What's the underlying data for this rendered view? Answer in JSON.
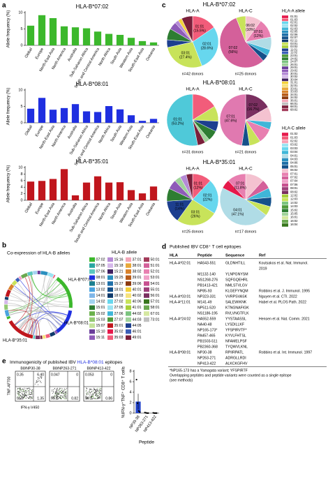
{
  "panel_labels": [
    "a",
    "b",
    "c",
    "d",
    "e"
  ],
  "chart_data": [
    {
      "type": "bar",
      "title": "HLA-B*07:02",
      "color": "#3cb82c",
      "ylabel": "Allele frequency (%)",
      "categories": [
        "Global",
        "Europe",
        "North-East Asia",
        "North America",
        "Australia",
        "Sub-Saharan Africa",
        "South and Central America",
        "North Africa",
        "South Asia",
        "Western Asia",
        "South-East Asia",
        "Oceania"
      ],
      "values": [
        6,
        9.2,
        8.3,
        5.8,
        5.5,
        5.2,
        4.2,
        3.5,
        3.2,
        2.3,
        1.3,
        0.9
      ],
      "ylim": [
        0,
        10
      ],
      "yticks": [
        0,
        5,
        10
      ]
    },
    {
      "type": "bar",
      "title": "HLA-B*08:01",
      "color": "#1f2fe0",
      "ylabel": "Allele frequency (%)",
      "categories": [
        "Global",
        "Europe",
        "North-East Asia",
        "North America",
        "Australia",
        "Sub-Saharan Africa",
        "South and Central America",
        "North Africa",
        "South Asia",
        "Western Asia",
        "South-East Asia",
        "Oceania"
      ],
      "values": [
        4.3,
        7.6,
        4.0,
        4.5,
        5.7,
        3.5,
        3.3,
        5.1,
        4.1,
        2.3,
        0.6,
        1.2
      ],
      "ylim": [
        0,
        10
      ],
      "yticks": [
        0,
        5,
        10
      ]
    },
    {
      "type": "bar",
      "title": "HLA-B*35:01",
      "color": "#c0161d",
      "ylabel": "Allele frequency (%)",
      "categories": [
        "Global",
        "Europe",
        "North-East Asia",
        "North America",
        "Australia",
        "Sub-Saharan Africa",
        "South and Central America",
        "North Africa",
        "South Asia",
        "Western Asia",
        "South-East Asia",
        "Oceania"
      ],
      "values": [
        5.7,
        5.9,
        6.5,
        9.5,
        1.5,
        5.4,
        7.3,
        5.4,
        5.5,
        3.1,
        2.1,
        4.2
      ],
      "ylim": [
        0,
        10
      ],
      "yticks": [
        0,
        2,
        4,
        6,
        8,
        10
      ]
    },
    {
      "type": "pie",
      "title": "HLA-A",
      "note": "n=42 donors",
      "categories": [
        "01:01",
        "02:01",
        "03:01",
        null,
        null,
        null,
        null,
        null,
        null
      ],
      "values": [
        15.5,
        28.6,
        27.4,
        4.8,
        7.1,
        4.8,
        2.4,
        2.4,
        7.0
      ],
      "value_labels": [
        "(15.5%)",
        "(28.6%)",
        "(27.4%)",
        null,
        null,
        null,
        null,
        null,
        null
      ],
      "colors": [
        "#f25c7a",
        "#67d7ee",
        "#c8e35a",
        "#1d3f8f",
        "#2e7d32",
        "#8e5bb8",
        "#b58ad6",
        "#f3d23a",
        "#7a1f3a"
      ]
    },
    {
      "type": "pie",
      "title": "HLA-C",
      "note": "n=25 donors",
      "categories": [
        "06:02",
        "07:01",
        null,
        null,
        null,
        "07:02",
        null
      ],
      "values": [
        10,
        12,
        8,
        4,
        4,
        56,
        6
      ],
      "value_labels": [
        "(10%)",
        "(12%)",
        null,
        null,
        null,
        "(56%)",
        null
      ],
      "colors": [
        "#f4c2d0",
        "#e87fb0",
        "#b0dce6",
        "#3fb6d8",
        "#14508a",
        "#d4609a",
        "#c8e35a"
      ]
    },
    {
      "type": "pie",
      "title": "HLA-A",
      "note": "n=31 donors",
      "categories": [
        null,
        null,
        null,
        null,
        null,
        null,
        "01:01"
      ],
      "values": [
        16.1,
        9.7,
        6.5,
        6.5,
        3.2,
        4.8,
        53.2
      ],
      "value_labels": [
        null,
        null,
        null,
        null,
        null,
        null,
        "(53.2%)"
      ],
      "colors": [
        "#f25c7a",
        "#c8e35a",
        "#1d3f8f",
        "#2e7d32",
        "#a0d39a",
        "#7a1f3a",
        "#4fc9d9"
      ]
    },
    {
      "type": "pie",
      "title": "HLA-C",
      "note": "n=21 donors",
      "categories": [
        "07:02",
        null,
        null,
        null,
        null,
        null,
        "07:01"
      ],
      "values": [
        16.7,
        9.5,
        4.8,
        9.5,
        7.1,
        4.8,
        47.6
      ],
      "value_labels": [
        "(16.7%)",
        null,
        null,
        null,
        null,
        null,
        "(47.6%)"
      ],
      "colors": [
        "#7a2f60",
        "#f4c2d0",
        "#3fb6d8",
        "#e87fb0",
        "#c8e35a",
        "#14508a",
        "#e079b0"
      ]
    },
    {
      "type": "pie",
      "title": "HLA-A",
      "note": "n=25 donors",
      "categories": [
        "01:01",
        "02:01",
        "03:01",
        "11:01",
        null,
        null,
        null,
        null,
        null
      ],
      "values": [
        12,
        22,
        26,
        14,
        8,
        6,
        4,
        4,
        4
      ],
      "value_labels": [
        "(12%)",
        "(22%)",
        "(26%)",
        "(14%)",
        null,
        null,
        null,
        null,
        null
      ],
      "colors": [
        "#f25c7a",
        "#67d7ee",
        "#c8e35a",
        "#1d3f8f",
        "#2e7d32",
        "#8e5bb8",
        "#a0d39a",
        "#b58ad6",
        "#7a1f3a"
      ]
    },
    {
      "type": "pie",
      "title": "HLA-C",
      "note": "n=17 donors",
      "categories": [
        null,
        null,
        null,
        null,
        null,
        "04:01",
        null,
        "07:01"
      ],
      "values": [
        11.8,
        5.9,
        5.9,
        5.9,
        5.9,
        47.1,
        5.7,
        11.8
      ],
      "value_labels": [
        null,
        null,
        null,
        null,
        null,
        "(47.1%)",
        null,
        "(11.8%)"
      ],
      "colors": [
        "#f4c2d0",
        "#d4609a",
        "#3fb6d8",
        "#14508a",
        "#c8e35a",
        "#b0dce6",
        "#e6194b",
        "#e87fb0"
      ]
    },
    {
      "type": "dotbar",
      "color": "#2244cc",
      "ylabel": "%IFN-γ⁺TNF⁺ CD8⁺ T cells",
      "xlabel": "Peptide",
      "categories": [
        "NP30-38",
        "NP263-271",
        "NP413-422"
      ],
      "values": [
        2.2,
        0.05,
        0.03
      ],
      "errors": [
        1.5,
        0.03,
        0.02
      ],
      "points": [
        [
          6.4,
          1.9,
          0.4,
          0.2
        ],
        [
          0.1,
          0.05,
          0,
          0
        ],
        [
          0.05,
          0,
          0,
          0
        ]
      ],
      "ylim": [
        0,
        8
      ],
      "yticks": [
        0,
        2,
        4,
        6,
        8
      ]
    }
  ],
  "panel_b": {
    "title": "Co-expression of HLA-B alleles",
    "arc_labels": [
      "HLA-B*07:02",
      "HLA-B*08:01",
      "HLA-B*35:01"
    ],
    "arc_colors": [
      "#3cb82c",
      "#1f2fe0",
      "#c0161d"
    ],
    "legend": {
      "title": "HLA-B allele",
      "labels": [
        "07:02",
        "07:05",
        "07:06",
        "08:01",
        "13:01",
        "13:02",
        "14:01",
        "14:02",
        "15:01",
        "15:02",
        "15:03",
        "15:07",
        "15:10",
        "15:11",
        "15:16",
        "15:18",
        "15:21",
        "15:25",
        "15:27",
        "18:01",
        "18:03",
        "27:02",
        "27:05",
        "27:06",
        "27:07",
        "35:01",
        "35:02",
        "35:03",
        "37:01",
        "38:01",
        "38:02",
        "39:01",
        "39:06",
        "40:01",
        "40:02",
        "40:06",
        "41:01",
        "44:02",
        "44:03",
        "44:05",
        "46:01",
        "49:01",
        "50:01",
        "51:01",
        "52:01",
        "53:01",
        "54:01",
        "55:01",
        "56:01",
        "57:01",
        "58:01",
        "67:01",
        "73:01"
      ],
      "colors": [
        "#3cb82c",
        "#2aa6a0",
        "#5bc8c0",
        "#1f2fe0",
        "#1b7f8f",
        "#4aa3df",
        "#7fb6e8",
        "#a3d3f0",
        "#2e7d32",
        "#6ab04c",
        "#94c973",
        "#c3e29a",
        "#6a3d9a",
        "#8e5bb8",
        "#b58ad6",
        "#d5b8ea",
        "#402060",
        "#2a8fbf",
        "#1f6fa8",
        "#14508a",
        "#0f3a6b",
        "#67d7ee",
        "#9be3f2",
        "#3fb6d8",
        "#4f9a3a",
        "#c0161d",
        "#e6194b",
        "#f25c7a",
        "#f4a6b8",
        "#e8a838",
        "#d9822b",
        "#b85c1a",
        "#8b3a0f",
        "#f3d23a",
        "#f7e27a",
        "#c8e35a",
        "#a8cf3a",
        "#7bc47f",
        "#a0d39a",
        "#1d3f8f",
        "#3b5fb8",
        "#7a1f3a",
        "#a33a5a",
        "#d4609a",
        "#e87fb0",
        "#f0a0c8",
        "#c85090",
        "#9e3f7a",
        "#7a2f60",
        "#38761d",
        "#6aa84f",
        "#d5e8a0",
        "#c0c0c0"
      ]
    }
  },
  "panel_c": {
    "row_titles": [
      "HLA-B*07:02",
      "HLA-B*08:01",
      "HLA-B*35:01"
    ],
    "row_title_colors": [
      "#3cb82c",
      "#1f2fe0",
      "#c0161d"
    ],
    "legends": [
      {
        "title": "HLA-A allele",
        "labels": [
          "01:01",
          "01:03",
          "02:01",
          "02:02",
          "02:03",
          "02:05",
          "02:06",
          "02:07",
          "02:11",
          "03:01",
          "03:02",
          "11:01",
          "11:02",
          "23:01",
          "24:02",
          "24:07",
          "26:01",
          "29:01",
          "29:02",
          "30:01",
          "30:02",
          "30:04",
          "31:01",
          "32:01",
          "33:01",
          "33:03",
          "34:01",
          "34:02",
          "36:01",
          "66:01",
          "68:01",
          "68:02"
        ],
        "colors": [
          "#e6194b",
          "#f25c7a",
          "#67d7ee",
          "#9be3f2",
          "#3fb6d8",
          "#2a8fbf",
          "#1f6fa8",
          "#14508a",
          "#0f3a6b",
          "#c8e35a",
          "#a8cf3a",
          "#1d3f8f",
          "#3b5fb8",
          "#4f9a3a",
          "#2e7d32",
          "#7bc47f",
          "#a0d39a",
          "#6a3d9a",
          "#8e5bb8",
          "#b58ad6",
          "#d5b8ea",
          "#402060",
          "#f3d23a",
          "#f7e27a",
          "#e8a838",
          "#d9822b",
          "#b85c1a",
          "#8b3a0f",
          "#f4a6b8",
          "#c0c0c0",
          "#7a1f3a",
          "#a33a5a"
        ]
      },
      {
        "title": "HLA-C allele",
        "labels": [
          "01:02",
          "01:03",
          "02:02",
          "03:02",
          "03:03",
          "03:04",
          "04:01",
          "04:03",
          "04:06",
          "05:01",
          "06:02",
          "07:01",
          "07:02",
          "07:04",
          "07:06",
          "08:01",
          "08:02",
          "12:02",
          "12:03",
          "14:02",
          "14:03",
          "15:02",
          "15:05",
          "16:01",
          "16:02",
          "16:04"
        ],
        "colors": [
          "#e6194b",
          "#f25c7a",
          "#f7a1b5",
          "#9be3f2",
          "#67d7ee",
          "#3fb6d8",
          "#b0dce6",
          "#2a8fbf",
          "#1f6fa8",
          "#14508a",
          "#f4c2d0",
          "#e87fb0",
          "#d4609a",
          "#f0a0c8",
          "#c85090",
          "#9e3f7a",
          "#7a2f60",
          "#a8cf3a",
          "#c8e35a",
          "#7bc47f",
          "#4f9a3a",
          "#2e7d32",
          "#a0d39a",
          "#d5e8a0",
          "#6aa84f",
          "#38761d"
        ]
      }
    ]
  },
  "table": {
    "title": "Published IBV CD8⁺ T cell epitopes",
    "header": [
      "HLA",
      "Peptide",
      "Sequence",
      "Ref"
    ],
    "rows": [
      [
        "HLA-A*02:01",
        "HA543-551",
        "GLDNHTILL",
        "Koutsakos et al. Nat. Immunol."
      ],
      [
        null,
        null,
        null,
        "2019"
      ],
      [
        null,
        "M1132-140",
        "YLNPGNYSM",
        null
      ],
      [
        null,
        "NS1268-276",
        "SQFGQEHRL",
        null
      ],
      [
        null,
        "PB1413-421",
        "NMLSTVLGV",
        null
      ],
      [
        null,
        "NP85-93",
        "KLGEFYNQM",
        "Robbins et al. J. Immunol. 1995"
      ],
      [
        "HLA-A*03:01",
        "NP323-331",
        "VVRPSVASK",
        "Nguyen et al. CTI. 2022"
      ],
      [
        "HLA-A*11:01",
        "M141-49",
        "SALEWIKNK",
        "Habel et al. PLOS Path. 2022"
      ],
      [
        null,
        "NP511-520",
        "KTNGNAFIGK",
        null
      ],
      [
        null,
        "NS1186-195",
        "RVLVNGTFLK",
        null
      ],
      [
        "HLA-A*24:02",
        "HA552-559",
        "YYSTAASSL",
        "Hensen et al. Nat. Comm. 2021"
      ],
      [
        null,
        "NA40-48",
        "LYSDILLKF",
        null
      ],
      [
        null,
        "NP165-173*",
        "YFSPIRVTF*",
        null
      ],
      [
        null,
        "PA457-465",
        "KYVLFHTSL",
        null
      ],
      [
        null,
        "PB1503-511",
        "NFAMELPSF",
        null
      ],
      [
        null,
        "PB2360-368",
        "TYQWVLKNL",
        null
      ],
      [
        "HLA-B*08:01",
        "NP30-38",
        "RPIIRPATL",
        "Robbins et al. Int. Immunol. 1997"
      ],
      [
        null,
        "NP263-271",
        "ADRGLLRDI",
        null
      ],
      [
        null,
        "NP413-422",
        "ALKCKGFHV",
        null
      ]
    ],
    "footnotes": [
      "*NP165-173 has a Yamagata variant; YFSPIRTF",
      "Overlapping peptides and peptide variants were counted as a single epitope",
      "(see methods)"
    ]
  },
  "panel_e": {
    "title_parts": [
      "Immunogenicity of published IBV",
      "HLA-B*08:01",
      "epitopes"
    ],
    "title_colors": [
      "#000000",
      "#1f2fe0",
      "#000000"
    ],
    "y_label": "TNF-AF700",
    "x_label": "IFN-γ-V450",
    "flow": [
      {
        "label": "B8/NP30-38",
        "quadrants": [
          "0.35",
          "6.40",
          "91.9",
          "1.35"
        ]
      },
      {
        "label": "B8/NP263-271",
        "quadrants": [
          "0.047",
          "0",
          "99.1",
          "0.82"
        ]
      },
      {
        "label": "B8/NP413-422",
        "quadrants": [
          "0.053",
          "0",
          "99.1",
          "0.86"
        ]
      }
    ]
  }
}
